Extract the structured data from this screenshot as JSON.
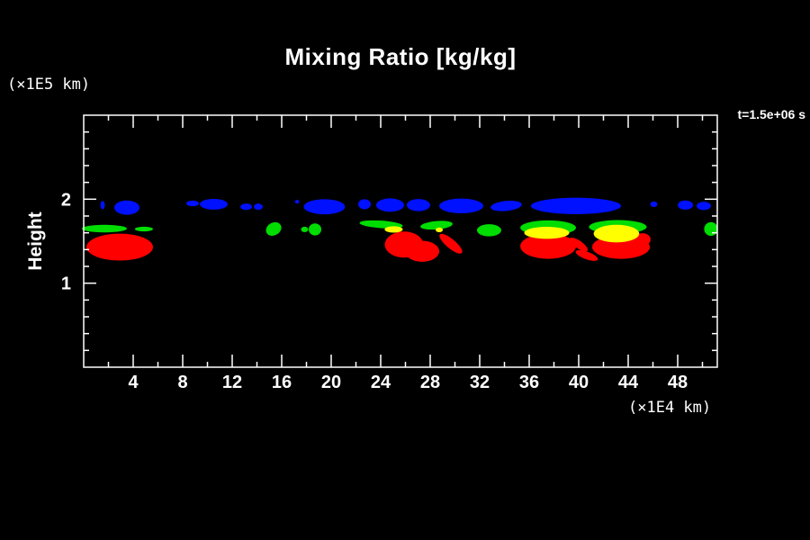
{
  "title": "Mixing Ratio [kg/kg]",
  "colors": {
    "background": "#000000",
    "foreground": "#ffffff",
    "blue": "#0011ff",
    "green": "#00dd00",
    "yellow": "#ffff00",
    "red": "#ff0000"
  },
  "chart_data": {
    "type": "heatmap",
    "subtype": "filled-contour",
    "title": "Mixing Ratio [kg/kg]",
    "xlabel": "(×1E4 km)",
    "ylabel": "Height",
    "ylabel_units": "(×1E5 km)",
    "time_annotation": "t=1.5e+06 s",
    "xlim": [
      0,
      51.2
    ],
    "ylim": [
      0,
      3
    ],
    "x_major_ticks": [
      4,
      8,
      12,
      16,
      20,
      24,
      28,
      32,
      36,
      40,
      44,
      48
    ],
    "x_minor_tick_step": 2,
    "y_major_ticks": [
      1,
      2
    ],
    "y_minor_tick_step": 0.2,
    "grid": false,
    "legend": "none",
    "band_colors": {
      "blue": "#0011ff",
      "green": "#00dd00",
      "yellow": "#ffff00",
      "red": "#ff0000"
    },
    "blobs": [
      {
        "c": "blue",
        "x": 1.53,
        "y": 1.93,
        "rx": 0.18,
        "ry": 0.05,
        "rot": 0
      },
      {
        "c": "blue",
        "x": 3.49,
        "y": 1.9,
        "rx": 1.02,
        "ry": 0.085,
        "rot": 0
      },
      {
        "c": "blue",
        "x": 8.8,
        "y": 1.95,
        "rx": 0.51,
        "ry": 0.034,
        "rot": 0
      },
      {
        "c": "blue",
        "x": 10.51,
        "y": 1.94,
        "rx": 1.13,
        "ry": 0.064,
        "rot": 0
      },
      {
        "c": "blue",
        "x": 13.13,
        "y": 1.91,
        "rx": 0.47,
        "ry": 0.038,
        "rot": 0
      },
      {
        "c": "blue",
        "x": 14.11,
        "y": 1.91,
        "rx": 0.36,
        "ry": 0.038,
        "rot": 0
      },
      {
        "c": "blue",
        "x": 17.24,
        "y": 1.97,
        "rx": 0.18,
        "ry": 0.021,
        "rot": 0
      },
      {
        "c": "blue",
        "x": 19.45,
        "y": 1.91,
        "rx": 1.67,
        "ry": 0.09,
        "rot": 0
      },
      {
        "c": "blue",
        "x": 22.69,
        "y": 1.94,
        "rx": 0.51,
        "ry": 0.06,
        "rot": 0
      },
      {
        "c": "blue",
        "x": 24.76,
        "y": 1.93,
        "rx": 1.13,
        "ry": 0.08,
        "rot": 0
      },
      {
        "c": "blue",
        "x": 27.05,
        "y": 1.93,
        "rx": 0.95,
        "ry": 0.072,
        "rot": 0
      },
      {
        "c": "blue",
        "x": 30.51,
        "y": 1.92,
        "rx": 1.78,
        "ry": 0.088,
        "rot": 0
      },
      {
        "c": "blue",
        "x": 34.14,
        "y": 1.92,
        "rx": 1.27,
        "ry": 0.06,
        "rot": -6
      },
      {
        "c": "blue",
        "x": 39.78,
        "y": 1.92,
        "rx": 3.64,
        "ry": 0.098,
        "rot": 0
      },
      {
        "c": "blue",
        "x": 46.07,
        "y": 1.94,
        "rx": 0.29,
        "ry": 0.033,
        "rot": 0
      },
      {
        "c": "blue",
        "x": 48.62,
        "y": 1.93,
        "rx": 0.62,
        "ry": 0.055,
        "rot": 0
      },
      {
        "c": "blue",
        "x": 50.11,
        "y": 1.92,
        "rx": 0.58,
        "ry": 0.05,
        "rot": 0
      },
      {
        "c": "green",
        "x": 1.67,
        "y": 1.65,
        "rx": 1.82,
        "ry": 0.045,
        "rot": 0
      },
      {
        "c": "green",
        "x": 4.87,
        "y": 1.645,
        "rx": 0.73,
        "ry": 0.028,
        "rot": 0
      },
      {
        "c": "green",
        "x": 15.35,
        "y": 1.645,
        "rx": 0.65,
        "ry": 0.075,
        "rot": -30
      },
      {
        "c": "green",
        "x": 17.85,
        "y": 1.64,
        "rx": 0.29,
        "ry": 0.033,
        "rot": 0
      },
      {
        "c": "green",
        "x": 18.69,
        "y": 1.64,
        "rx": 0.51,
        "ry": 0.072,
        "rot": 0
      },
      {
        "c": "green",
        "x": 24.04,
        "y": 1.7,
        "rx": 1.75,
        "ry": 0.045,
        "rot": 4
      },
      {
        "c": "green",
        "x": 28.51,
        "y": 1.69,
        "rx": 1.31,
        "ry": 0.05,
        "rot": -5
      },
      {
        "c": "green",
        "x": 32.76,
        "y": 1.63,
        "rx": 0.98,
        "ry": 0.072,
        "rot": 0
      },
      {
        "c": "green",
        "x": 37.53,
        "y": 1.66,
        "rx": 2.25,
        "ry": 0.088,
        "rot": 0
      },
      {
        "c": "green",
        "x": 43.16,
        "y": 1.67,
        "rx": 2.33,
        "ry": 0.082,
        "rot": 0
      },
      {
        "c": "green",
        "x": 50.69,
        "y": 1.645,
        "rx": 0.55,
        "ry": 0.082,
        "rot": 0
      },
      {
        "c": "red",
        "x": 2.91,
        "y": 1.43,
        "rx": 2.69,
        "ry": 0.16,
        "rot": 0
      },
      {
        "c": "red",
        "x": 25.89,
        "y": 1.46,
        "rx": 1.56,
        "ry": 0.155,
        "rot": 0
      },
      {
        "c": "red",
        "x": 27.35,
        "y": 1.38,
        "rx": 1.38,
        "ry": 0.125,
        "rot": 0
      },
      {
        "c": "red",
        "x": 29.67,
        "y": 1.47,
        "rx": 1.16,
        "ry": 0.055,
        "rot": 40
      },
      {
        "c": "red",
        "x": 37.53,
        "y": 1.44,
        "rx": 2.25,
        "ry": 0.15,
        "rot": 0
      },
      {
        "c": "red",
        "x": 40.0,
        "y": 1.46,
        "rx": 0.87,
        "ry": 0.045,
        "rot": 35
      },
      {
        "c": "red",
        "x": 40.65,
        "y": 1.33,
        "rx": 0.95,
        "ry": 0.045,
        "rot": 20
      },
      {
        "c": "red",
        "x": 43.42,
        "y": 1.43,
        "rx": 2.33,
        "ry": 0.14,
        "rot": 0
      },
      {
        "c": "red",
        "x": 45.16,
        "y": 1.52,
        "rx": 0.65,
        "ry": 0.075,
        "rot": 0
      },
      {
        "c": "yellow",
        "x": 25.05,
        "y": 1.64,
        "rx": 0.73,
        "ry": 0.038,
        "rot": 0
      },
      {
        "c": "yellow",
        "x": 28.73,
        "y": 1.635,
        "rx": 0.29,
        "ry": 0.028,
        "rot": 0
      },
      {
        "c": "yellow",
        "x": 37.42,
        "y": 1.6,
        "rx": 1.82,
        "ry": 0.072,
        "rot": 0
      },
      {
        "c": "yellow",
        "x": 43.05,
        "y": 1.59,
        "rx": 1.84,
        "ry": 0.105,
        "rot": 0
      }
    ]
  }
}
